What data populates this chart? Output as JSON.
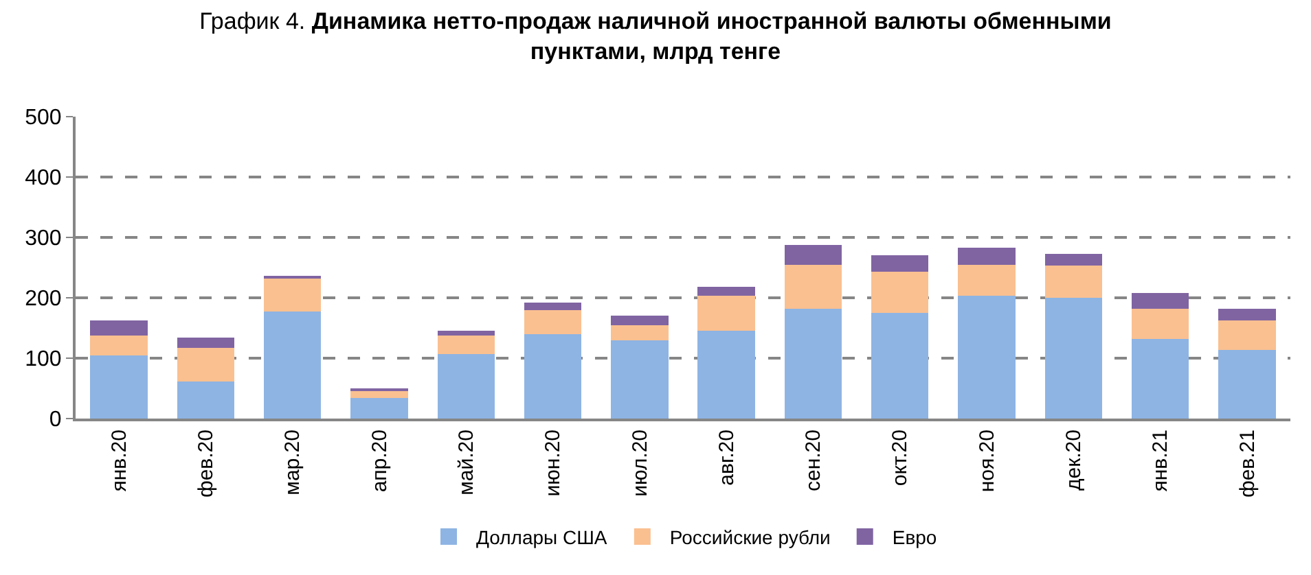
{
  "chart_data": {
    "type": "bar",
    "stacked": true,
    "title": "График 4. Динамика нетто-продаж наличной иностранной валюты обменными пунктами, млрд тенге",
    "categories": [
      "янв.20",
      "фев.20",
      "мар.20",
      "апр.20",
      "май.20",
      "июн.20",
      "июл.20",
      "авг.20",
      "сен.20",
      "окт.20",
      "ноя.20",
      "дек.20",
      "янв.21",
      "фев.21"
    ],
    "series": [
      {
        "name": "Доллары США",
        "color": "#8eb4e3",
        "values": [
          104,
          61,
          177,
          34,
          107,
          140,
          129,
          145,
          182,
          175,
          203,
          200,
          132,
          114
        ]
      },
      {
        "name": "Российские рубли",
        "color": "#fac090",
        "values": [
          33,
          56,
          56,
          13,
          30,
          40,
          26,
          58,
          73,
          68,
          52,
          53,
          50,
          48
        ]
      },
      {
        "name": "Евро",
        "color": "#8064a2",
        "values": [
          25,
          17,
          2,
          2,
          8,
          12,
          15,
          15,
          33,
          28,
          28,
          20,
          26,
          20
        ]
      }
    ],
    "ylim": [
      0,
      500
    ],
    "yticks": [
      0,
      100,
      200,
      300,
      400,
      500
    ],
    "grid": "y",
    "legend": "bottom"
  }
}
